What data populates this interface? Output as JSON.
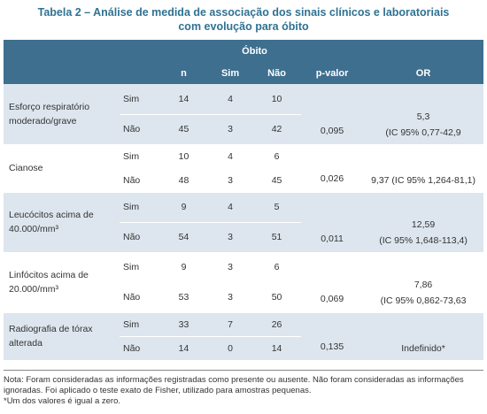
{
  "title": "Tabela 2 – Análise de medida de associação dos sinais clínicos e laboratoriais com evolução para óbito",
  "header": {
    "group": "Óbito",
    "columns": [
      "n",
      "Sim",
      "Não",
      "p-valor",
      "OR"
    ]
  },
  "groups": [
    {
      "label": "Esforço respiratório moderado/grave",
      "rows": [
        {
          "sub": "Sim",
          "n": "14",
          "sim": "4",
          "nao": "10"
        },
        {
          "sub": "Não",
          "n": "45",
          "sim": "3",
          "nao": "42"
        }
      ],
      "p": "0,095",
      "or": [
        "5,3",
        "(IC 95% 0,77-42,9"
      ]
    },
    {
      "label": "Cianose",
      "rows": [
        {
          "sub": "Sim",
          "n": "10",
          "sim": "4",
          "nao": "6"
        },
        {
          "sub": "Não",
          "n": "48",
          "sim": "3",
          "nao": "45"
        }
      ],
      "p": "0,026",
      "or": [
        "9,37 (IC 95% 1,264-81,1)"
      ]
    },
    {
      "label": "Leucócitos acima de 40.000/mm³",
      "rows": [
        {
          "sub": "Sim",
          "n": "9",
          "sim": "4",
          "nao": "5"
        },
        {
          "sub": "Não",
          "n": "54",
          "sim": "3",
          "nao": "51"
        }
      ],
      "p": "0,011",
      "or": [
        "12,59",
        "(IC 95% 1,648-113,4)"
      ]
    },
    {
      "label": "Linfócitos acima de 20.000/mm³",
      "rows": [
        {
          "sub": "Sim",
          "n": "9",
          "sim": "3",
          "nao": "6"
        },
        {
          "sub": "Não",
          "n": "53",
          "sim": "3",
          "nao": "50"
        }
      ],
      "p": "0,069",
      "or": [
        "7,86",
        "(IC 95% 0,862-73,63"
      ]
    },
    {
      "label": "Radiografia de tórax alterada",
      "rows": [
        {
          "sub": "Sim",
          "n": "33",
          "sim": "7",
          "nao": "26"
        },
        {
          "sub": "Não",
          "n": "14",
          "sim": "0",
          "nao": "14"
        }
      ],
      "p": "0,135",
      "or": [
        "Indefinido*"
      ]
    }
  ],
  "notes": [
    "Nota: Foram consideradas as informações registradas como presente ou ausente. Não foram consideradas as informações ignoradas. Foi aplicado o teste exato de Fisher, utilizado para amostras pequenas.",
    "*Um dos valores é igual a zero."
  ]
}
